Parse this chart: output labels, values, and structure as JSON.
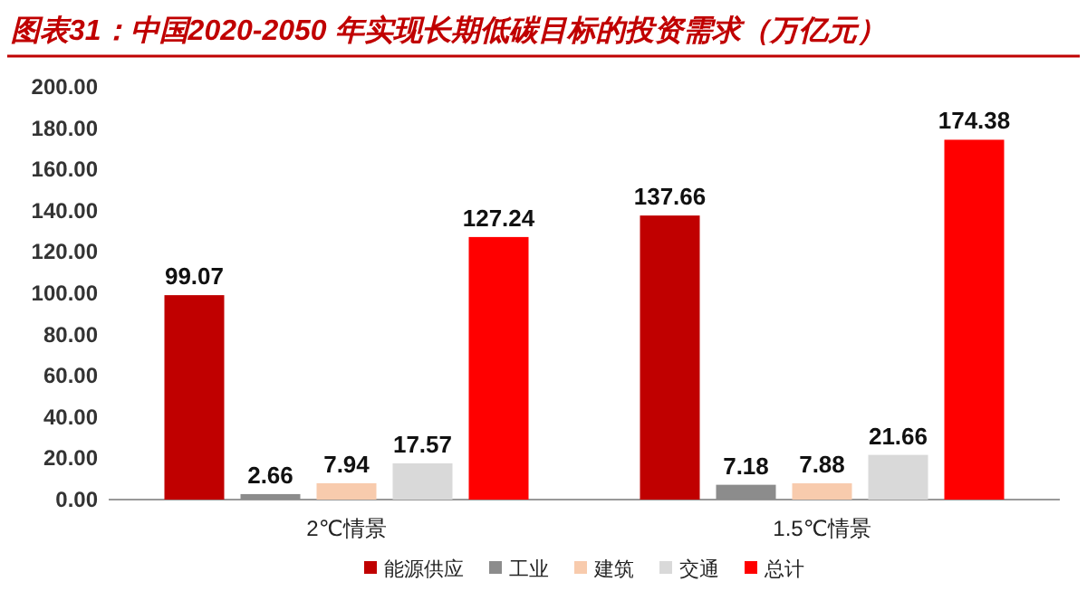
{
  "chart_data": {
    "type": "bar",
    "title": "图表31：中国2020-2050 年实现长期低碳目标的投资需求（万亿元）",
    "categories": [
      "2℃情景",
      "1.5℃情景"
    ],
    "series": [
      {
        "name": "能源供应",
        "color": "#c00000",
        "values": [
          99.07,
          137.66
        ]
      },
      {
        "name": "工业",
        "color": "#8c8c8c",
        "values": [
          2.66,
          7.18
        ]
      },
      {
        "name": "建筑",
        "color": "#f8cbad",
        "values": [
          7.94,
          7.88
        ]
      },
      {
        "name": "交通",
        "color": "#d9d9d9",
        "values": [
          17.57,
          21.66
        ]
      },
      {
        "name": "总计",
        "color": "#ff0000",
        "values": [
          127.24,
          174.38
        ]
      }
    ],
    "ylim": [
      0,
      200
    ],
    "yticks": [
      {
        "value": 0,
        "label": "0.00"
      },
      {
        "value": 20,
        "label": "20.00"
      },
      {
        "value": 40,
        "label": "40.00"
      },
      {
        "value": 60,
        "label": "60.00"
      },
      {
        "value": 80,
        "label": "80.00"
      },
      {
        "value": 100,
        "label": "100.00"
      },
      {
        "value": 120,
        "label": "120.00"
      },
      {
        "value": 140,
        "label": "140.00"
      },
      {
        "value": 160,
        "label": "160.00"
      },
      {
        "value": 180,
        "label": "180.00"
      },
      {
        "value": 200,
        "label": "200.00"
      }
    ],
    "data_labels": true,
    "legend": "bottom"
  }
}
